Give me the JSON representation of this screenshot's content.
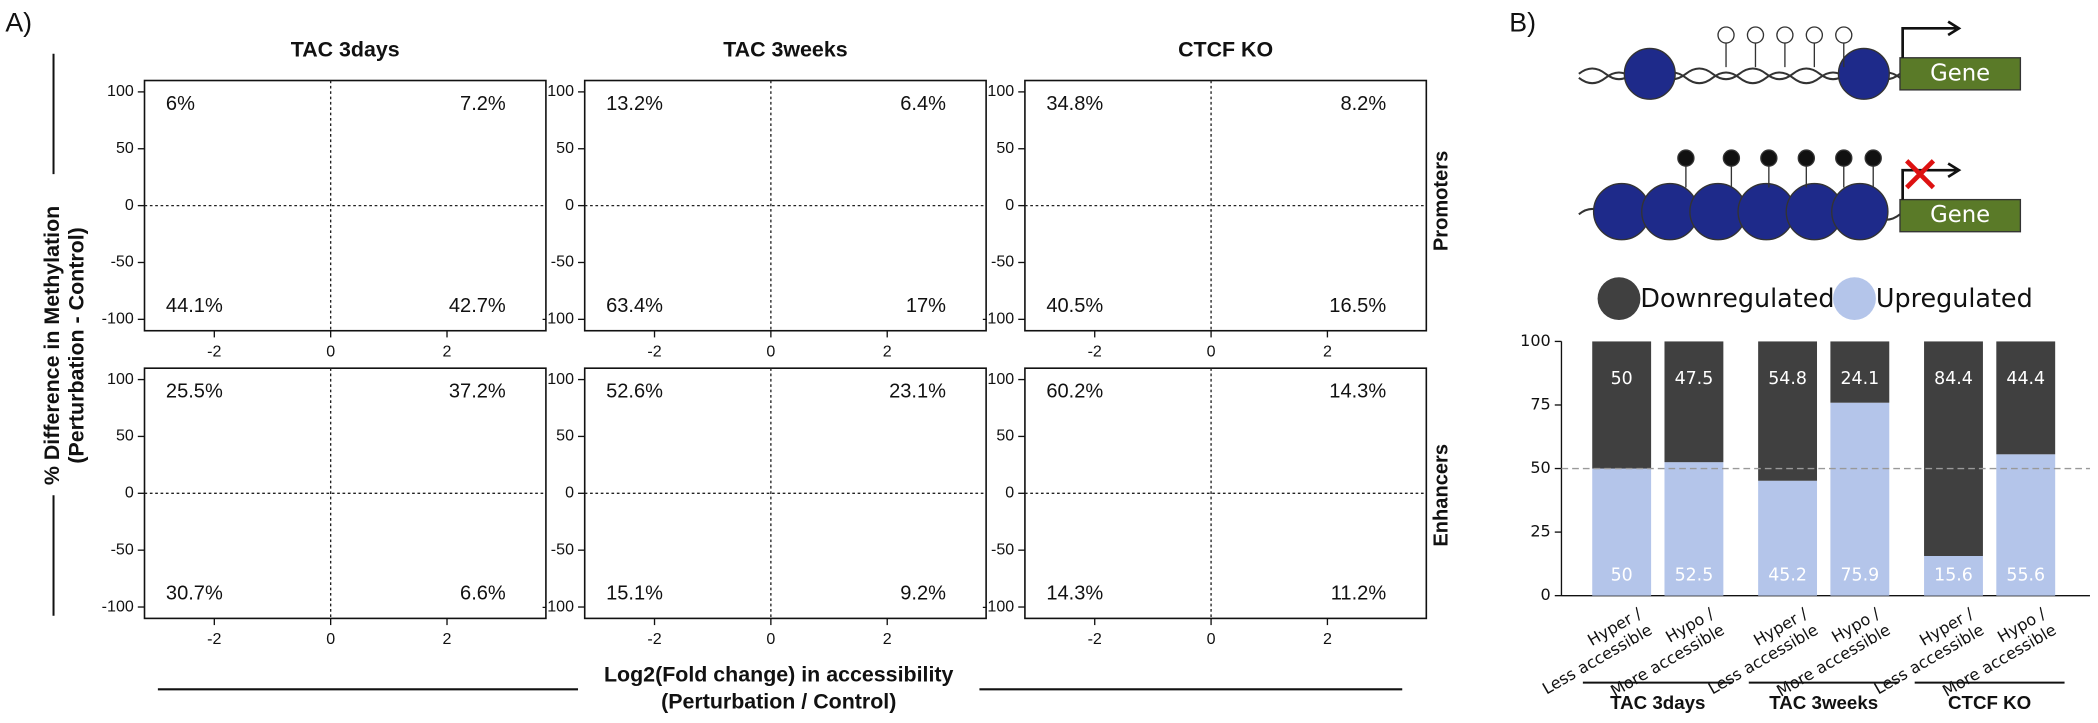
{
  "figure": {
    "label_a": "A)",
    "label_b": "B)",
    "y_label": "% Difference in Methylation",
    "y_label_sub": "(Perturbation - Control)",
    "x_label": "Log2(Fold change) in accessibility",
    "x_label_sub": "(Perturbation / Control)",
    "row_labels": [
      "Promoters",
      "Enhancers"
    ],
    "gene_top": "Gene",
    "gene_bottom": "Gene"
  },
  "chart_data": [
    {
      "type": "scatter",
      "title": "TAC 3days",
      "annotations": [
        {
          "value": 6,
          "label": "6%"
        },
        {
          "value": 7.2,
          "label": "7.2%"
        },
        {
          "value": 44.1,
          "label": "44.1%"
        },
        {
          "value": 42.7,
          "label": "42.7%"
        }
      ],
      "xlim": [
        -3.2,
        3.7
      ],
      "ylim": [
        -110,
        110
      ],
      "xticks": [
        -2,
        0,
        2
      ],
      "yticks": [
        -100,
        -50,
        0,
        50,
        100
      ],
      "hline": 0,
      "vline": 0
    },
    {
      "type": "scatter",
      "title": "TAC 3weeks",
      "annotations": [
        {
          "value": 13.2,
          "label": "13.2%"
        },
        {
          "value": 6.4,
          "label": "6.4%"
        },
        {
          "value": 63.4,
          "label": "63.4%"
        },
        {
          "value": 17,
          "label": "17%"
        }
      ],
      "xlim": [
        -3.2,
        3.7
      ],
      "ylim": [
        -110,
        110
      ],
      "xticks": [
        -2,
        0,
        2
      ],
      "yticks": [
        -100,
        -50,
        0,
        50,
        100
      ],
      "hline": 0,
      "vline": 0
    },
    {
      "type": "scatter",
      "title": "CTCF KO",
      "annotations": [
        {
          "value": 34.8,
          "label": "34.8%"
        },
        {
          "value": 8.2,
          "label": "8.2%"
        },
        {
          "value": 40.5,
          "label": "40.5%"
        },
        {
          "value": 16.5,
          "label": "16.5%"
        }
      ],
      "xlim": [
        -3.2,
        3.7
      ],
      "ylim": [
        -110,
        110
      ],
      "xticks": [
        -2,
        0,
        2
      ],
      "yticks": [
        -100,
        -50,
        0,
        50,
        100
      ],
      "hline": 0,
      "vline": 0
    },
    {
      "type": "scatter",
      "annotations": [
        {
          "value": 25.5,
          "label": "25.5%"
        },
        {
          "value": 37.2,
          "label": "37.2%"
        },
        {
          "value": 30.7,
          "label": "30.7%"
        },
        {
          "value": 6.6,
          "label": "6.6%"
        }
      ],
      "xlim": [
        -3.2,
        3.7
      ],
      "ylim": [
        -110,
        110
      ],
      "xticks": [
        -2,
        0,
        2
      ],
      "yticks": [
        -100,
        -50,
        0,
        50,
        100
      ],
      "hline": 0,
      "vline": 0
    },
    {
      "type": "scatter",
      "annotations": [
        {
          "value": 52.6,
          "label": "52.6%"
        },
        {
          "value": 23.1,
          "label": "23.1%"
        },
        {
          "value": 15.1,
          "label": "15.1%"
        },
        {
          "value": 9.2,
          "label": "9.2%"
        }
      ],
      "xlim": [
        -3.2,
        3.7
      ],
      "ylim": [
        -110,
        110
      ],
      "xticks": [
        -2,
        0,
        2
      ],
      "yticks": [
        -100,
        -50,
        0,
        50,
        100
      ],
      "hline": 0,
      "vline": 0
    },
    {
      "type": "scatter",
      "annotations": [
        {
          "value": 60.2,
          "label": "60.2%"
        },
        {
          "value": 14.3,
          "label": "14.3%"
        },
        {
          "value": 14.3,
          "label": "14.3%"
        },
        {
          "value": 11.2,
          "label": "11.2%"
        }
      ],
      "xlim": [
        -3.2,
        3.7
      ],
      "ylim": [
        -110,
        110
      ],
      "xticks": [
        -2,
        0,
        2
      ],
      "yticks": [
        -100,
        -50,
        0,
        50,
        100
      ],
      "hline": 0,
      "vline": 0
    },
    {
      "type": "stacked_bar",
      "groups": [
        "TAC 3days",
        "TAC 3weeks",
        "CTCF KO"
      ],
      "categories": [
        [
          "Hyper /",
          "Less accessible"
        ],
        [
          "Hypo /",
          "More accessible"
        ],
        [
          "Hyper /",
          "Less accessible"
        ],
        [
          "Hypo /",
          "More accessible"
        ],
        [
          "Hyper /",
          "Less accessible"
        ],
        [
          "Hypo /",
          "More accessible"
        ]
      ],
      "series": [
        {
          "name": "Upregulated",
          "color": "#b4c5ea",
          "values": [
            50,
            52.5,
            45.2,
            75.9,
            15.6,
            55.6
          ]
        },
        {
          "name": "Downregulated",
          "color": "#404040",
          "values": [
            50,
            47.5,
            54.8,
            24.1,
            84.4,
            44.4
          ]
        }
      ],
      "ylim": [
        0,
        100
      ],
      "yticks": [
        0,
        25,
        50,
        75,
        100
      ],
      "hline": 50
    }
  ]
}
